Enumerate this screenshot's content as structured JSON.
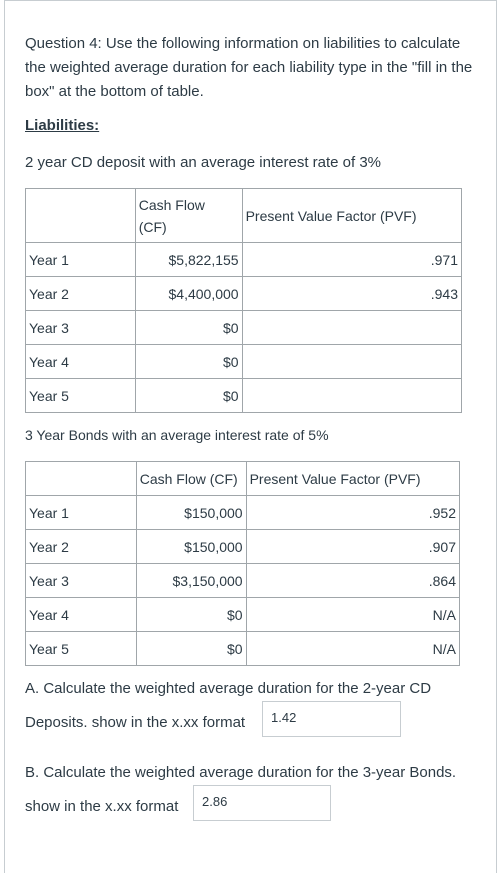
{
  "question": {
    "text": "Question 4: Use the following information on liabilities to calculate the weighted average duration for each liability type in the \"fill in the box\" at the bottom of table."
  },
  "liabilities_heading": "Liabilities:",
  "cd": {
    "title": "2 year CD deposit with an average interest rate of 3%",
    "headers": {
      "year": "",
      "cf_line1": "Cash Flow",
      "cf_line2": "(CF)",
      "pvf": "Present Value Factor (PVF)"
    },
    "rows": [
      {
        "year": "Year 1",
        "cf": "$5,822,155",
        "pvf": ".971"
      },
      {
        "year": "Year 2",
        "cf": "$4,400,000",
        "pvf": ".943"
      },
      {
        "year": "Year 3",
        "cf": "$0",
        "pvf": ""
      },
      {
        "year": "Year 4",
        "cf": "$0",
        "pvf": ""
      },
      {
        "year": "Year 5",
        "cf": "$0",
        "pvf": ""
      }
    ]
  },
  "bonds": {
    "title": "3 Year Bonds with an average interest rate of 5%",
    "headers": {
      "year": "",
      "cf": "Cash Flow (CF)",
      "pvf": "Present Value Factor (PVF)"
    },
    "rows": [
      {
        "year": "Year 1",
        "cf": "$150,000",
        "pvf": ".952"
      },
      {
        "year": "Year 2",
        "cf": "$150,000",
        "pvf": ".907"
      },
      {
        "year": "Year 3",
        "cf": "$3,150,000",
        "pvf": ".864"
      },
      {
        "year": "Year 4",
        "cf": "$0",
        "pvf": "N/A"
      },
      {
        "year": "Year 5",
        "cf": "$0",
        "pvf": "N/A"
      }
    ]
  },
  "question_a": {
    "line1": "A. Calculate the weighted average duration for the 2-year CD",
    "line2": "Deposits. show in the x.xx format",
    "answer": "1.42"
  },
  "question_b": {
    "line1": "B. Calculate the weighted average duration for the 3-year Bonds.",
    "line2": "show in the x.xx format",
    "answer": "2.86"
  }
}
